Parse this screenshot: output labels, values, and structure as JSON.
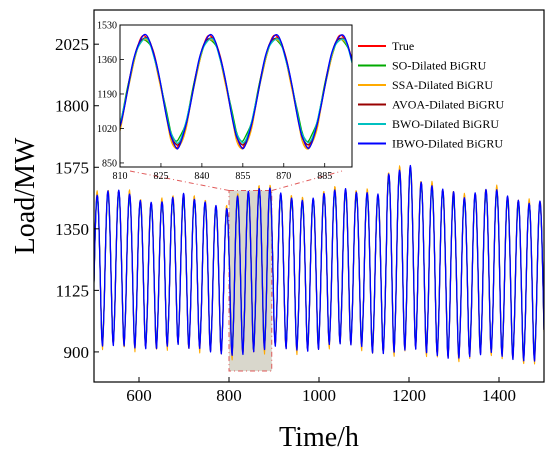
{
  "chart_data": [
    {
      "type": "line",
      "role": "main",
      "xlabel": "Time/h",
      "ylabel": "Load/MW",
      "xlim": [
        500,
        1500
      ],
      "ylim": [
        790,
        2150
      ],
      "xticks": [
        600,
        800,
        1000,
        1200,
        1400
      ],
      "yticks": [
        900,
        1125,
        1350,
        1575,
        1800,
        2025
      ],
      "highlight_region": {
        "x": [
          800,
          895
        ],
        "y": [
          830,
          1490
        ]
      },
      "series": [
        {
          "name": "True",
          "color": "#ff0000"
        },
        {
          "name": "SO-Dilated BiGRU",
          "color": "#00aa00"
        },
        {
          "name": "SSA-Dilated BiGRU",
          "color": "#ffaa00"
        },
        {
          "name": "AVOA-Dilated BiGRU",
          "color": "#990000"
        },
        {
          "name": "BWO-Dilated BiGRU",
          "color": "#00c0c0"
        },
        {
          "name": "IBWO-Dilated BiGRU",
          "color": "#0000ff"
        }
      ],
      "approx_daily_pattern": {
        "period_h": 24,
        "segments": [
          {
            "x": [
              500,
              600
            ],
            "low": 880,
            "high": 1470
          },
          {
            "x": [
              600,
              700
            ],
            "low": 890,
            "high": 1460
          },
          {
            "x": [
              700,
              800
            ],
            "low": 870,
            "high": 1440
          },
          {
            "x": [
              800,
              900
            ],
            "low": 860,
            "high": 1480
          },
          {
            "x": [
              900,
              1000
            ],
            "low": 880,
            "high": 1470
          },
          {
            "x": [
              1000,
              1100
            ],
            "low": 885,
            "high": 1475
          },
          {
            "x": [
              1100,
              1150
            ],
            "low": 870,
            "high": 1490
          },
          {
            "x": [
              1150,
              1220
            ],
            "low": 860,
            "high": 1560
          },
          {
            "x": [
              1220,
              1300
            ],
            "low": 850,
            "high": 1500
          },
          {
            "x": [
              1300,
              1400
            ],
            "low": 850,
            "high": 1475
          },
          {
            "x": [
              1400,
              1500
            ],
            "low": 840,
            "high": 1460
          }
        ]
      },
      "legend": {
        "placement": "inside-top-right"
      }
    },
    {
      "type": "line",
      "role": "inset-zoom",
      "xlim": [
        810,
        895
      ],
      "ylim": [
        830,
        1530
      ],
      "xticks": [
        810,
        825,
        840,
        855,
        870,
        885
      ],
      "yticks": [
        850,
        1020,
        1190,
        1360,
        1530
      ],
      "approx_daily_pattern": {
        "period_h": 24,
        "peak_hours": [
          819,
          843,
          867,
          891
        ],
        "trough_hours": [
          831,
          855,
          879
        ],
        "peak_values": {
          "True": 1475,
          "SO-Dilated BiGRU": 1460,
          "SSA-Dilated BiGRU": 1465,
          "AVOA-Dilated BiGRU": 1470,
          "BWO-Dilated BiGRU": 1462,
          "IBWO-Dilated BiGRU": 1478
        },
        "trough_values": {
          "True": 895,
          "SO-Dilated BiGRU": 925,
          "SSA-Dilated BiGRU": 880,
          "AVOA-Dilated BiGRU": 900,
          "BWO-Dilated BiGRU": 915,
          "IBWO-Dilated BiGRU": 890
        }
      }
    }
  ]
}
